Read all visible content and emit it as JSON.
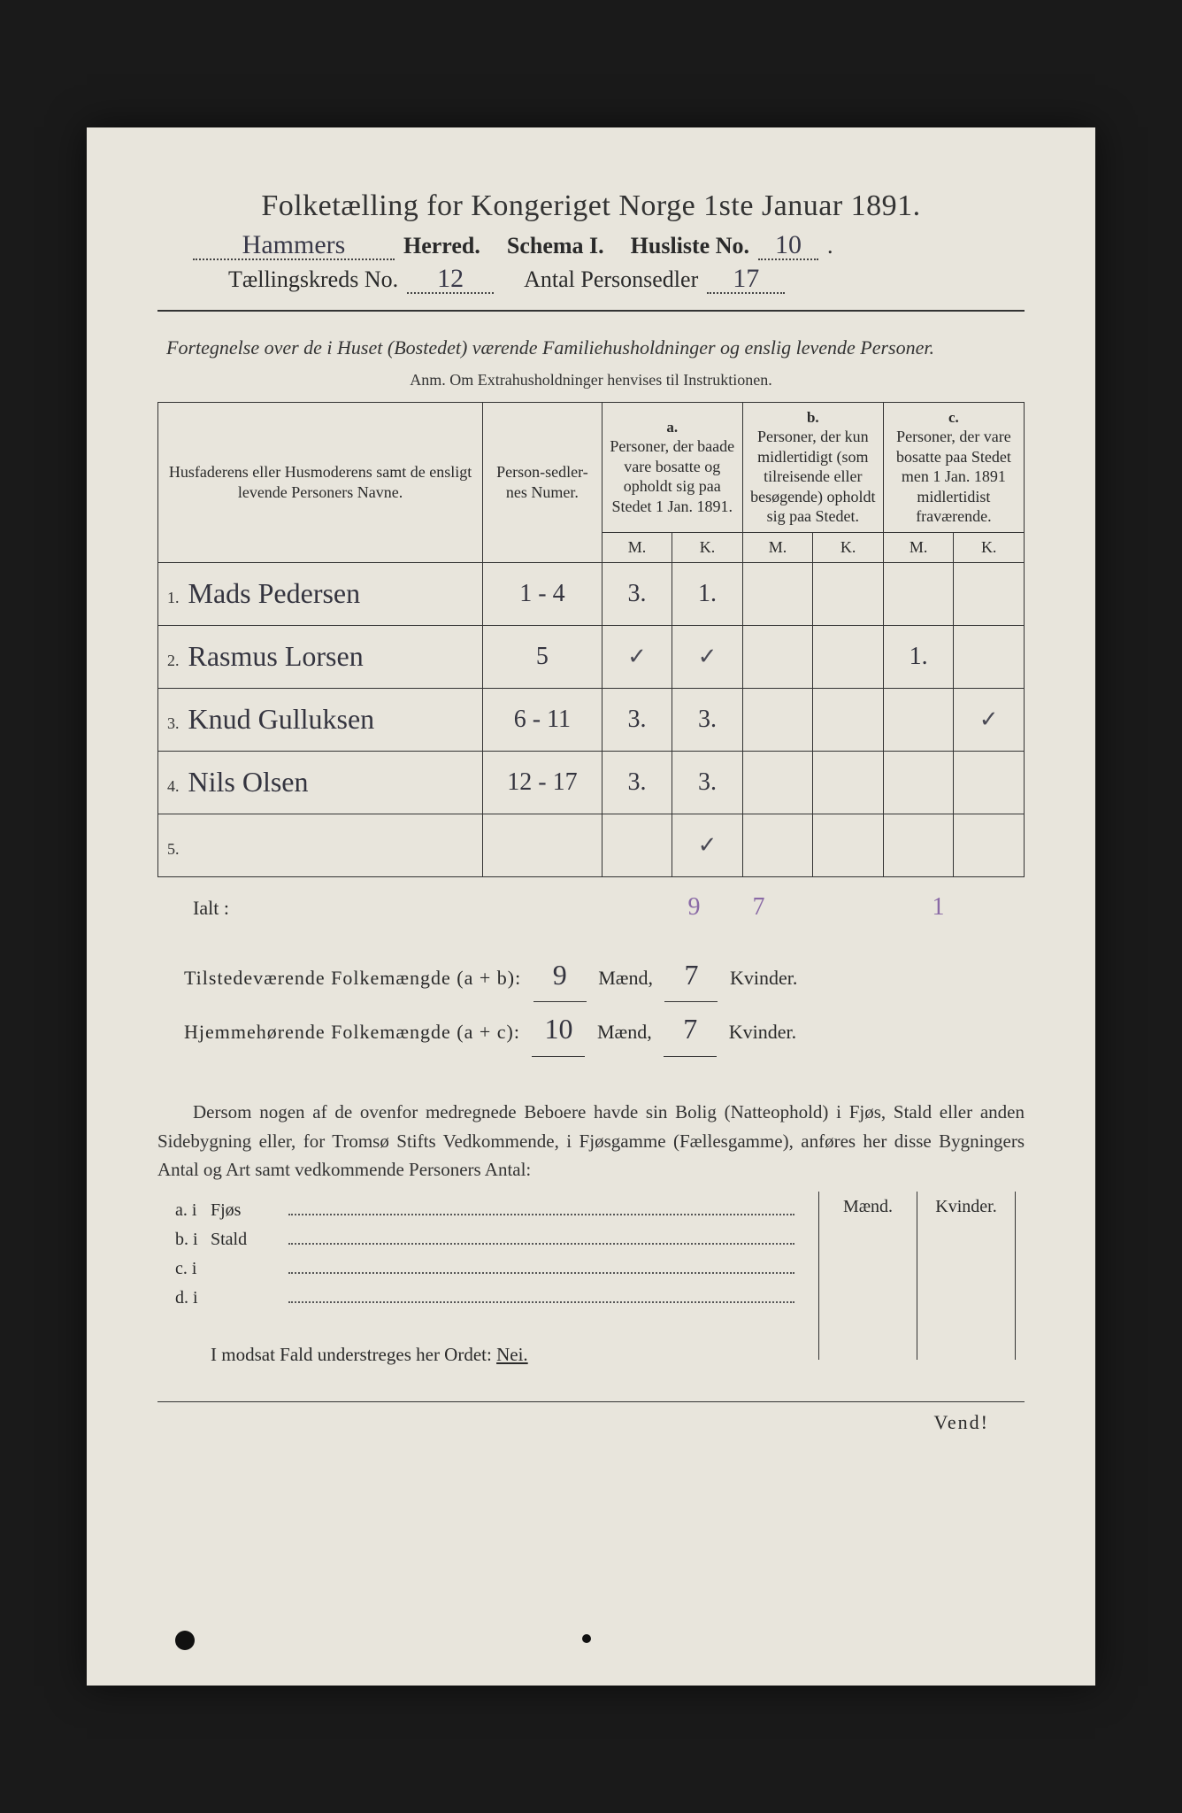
{
  "background_color": "#1a1a1a",
  "paper_color": "#e8e5dc",
  "ink_color": "#2a2a2a",
  "handwriting_color": "#34343f",
  "purple_pencil_color": "#8a6aa6",
  "header": {
    "line1": "Folketælling for Kongeriget Norge 1ste Januar 1891.",
    "herred_hand": "Hammers",
    "herred_lbl": "Herred.",
    "schema_lbl": "Schema I.",
    "husliste_lbl": "Husliste No.",
    "husliste_no": "10",
    "kreds_lbl": "Tællingskreds No.",
    "kreds_no": "12",
    "antal_lbl": "Antal Personsedler",
    "antal_no": "17"
  },
  "subheader": "Fortegnelse over de i Huset (Bostedet) værende Familiehusholdninger og enslig levende Personer.",
  "anm": "Anm.   Om Extrahusholdninger henvises til Instruktionen.",
  "columns": {
    "names": "Husfaderens eller Husmoderens samt de ensligt levende Personers Navne.",
    "numer": "Person-sedler-nes Numer.",
    "a_label": "a.",
    "a_text": "Personer, der baade vare bosatte og opholdt sig paa Stedet 1 Jan. 1891.",
    "b_label": "b.",
    "b_text": "Personer, der kun midlertidigt (som tilreisende eller besøgende) opholdt sig paa Stedet.",
    "c_label": "c.",
    "c_text": "Personer, der vare bosatte paa Stedet men 1 Jan. 1891 midlertidist fraværende.",
    "M": "M.",
    "K": "K."
  },
  "rows": [
    {
      "idx": "1.",
      "name": "Mads Pedersen",
      "num": "1 - 4",
      "aM": "3.",
      "aK": "1.",
      "bM": "",
      "bK": "",
      "cM": "",
      "cK": ""
    },
    {
      "idx": "2.",
      "name": "Rasmus Lorsen",
      "num": "5",
      "aM": "✓",
      "aK": "✓",
      "bM": "",
      "bK": "",
      "cM": "1.",
      "cK": ""
    },
    {
      "idx": "3.",
      "name": "Knud Gulluksen",
      "num": "6 - 11",
      "aM": "3.",
      "aK": "3.",
      "bM": "",
      "bK": "",
      "cM": "",
      "cK": "✓"
    },
    {
      "idx": "4.",
      "name": "Nils Olsen",
      "num": "12 - 17",
      "aM": "3.",
      "aK": "3.",
      "bM": "",
      "bK": "",
      "cM": "",
      "cK": ""
    },
    {
      "idx": "5.",
      "name": "",
      "num": "",
      "aM": "",
      "aK": "✓",
      "bM": "",
      "bK": "",
      "cM": "",
      "cK": ""
    }
  ],
  "ialt": {
    "label": "Ialt :",
    "aM": "9",
    "aK": "7",
    "cM": "1"
  },
  "totals": {
    "tilstede_lbl": "Tilstedeværende Folkemængde (a + b):",
    "tilstede_M": "9",
    "tilstede_K": "7",
    "hjemme_lbl": "Hjemmehørende Folkemængde (a + c):",
    "hjemme_M": "10",
    "hjemme_K": "7",
    "maend": "Mænd,",
    "kvinder": "Kvinder."
  },
  "paragraph": "Dersom nogen af de ovenfor medregnede Beboere havde sin Bolig (Natteophold) i Fjøs, Stald eller anden Sidebygning eller, for Tromsø Stifts Vedkommende, i Fjøsgamme (Fællesgamme), anføres her disse Bygningers Antal og Art samt vedkommende Personers Antal:",
  "lower": {
    "maend": "Mænd.",
    "kvinder": "Kvinder.",
    "rows": [
      {
        "k": "a.  i",
        "t": "Fjøs"
      },
      {
        "k": "b.  i",
        "t": "Stald"
      },
      {
        "k": "c.  i",
        "t": ""
      },
      {
        "k": "d.  i",
        "t": ""
      }
    ]
  },
  "nei_line": "I modsat Fald understreges her Ordet:",
  "nei": "Nei.",
  "vend": "Vend!"
}
